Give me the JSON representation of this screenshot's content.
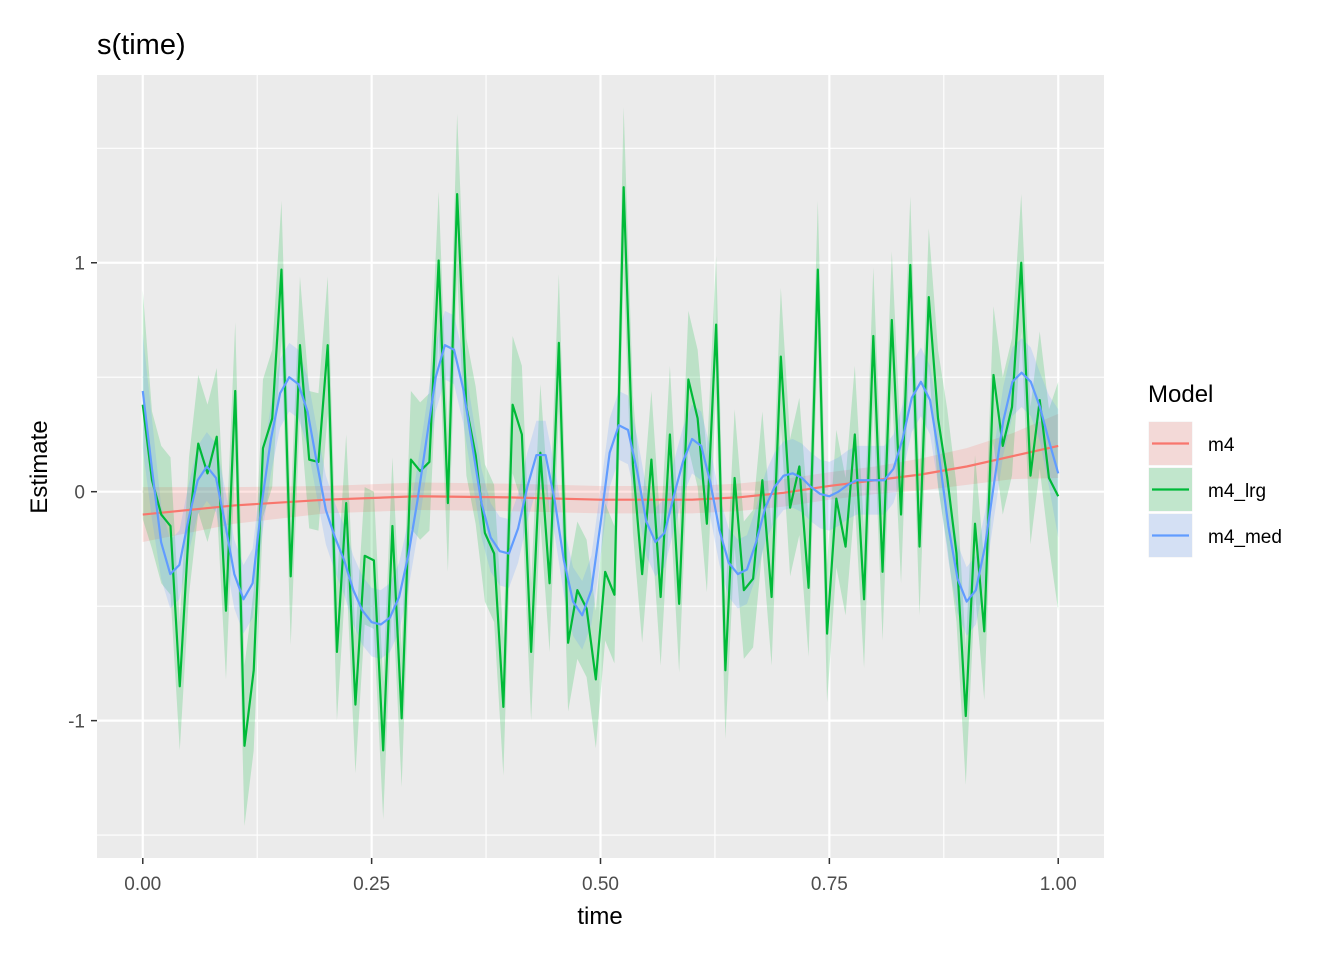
{
  "chart_data": {
    "type": "line",
    "title": "s(time)",
    "xlabel": "time",
    "ylabel": "Estimate",
    "xlim": [
      -0.05,
      1.05
    ],
    "ylim": [
      -1.6,
      1.82
    ],
    "x_ticks": [
      0.0,
      0.25,
      0.5,
      0.75,
      1.0
    ],
    "x_tick_labels": [
      "0.00",
      "0.25",
      "0.50",
      "0.75",
      "1.00"
    ],
    "y_ticks": [
      -1,
      0,
      1
    ],
    "y_tick_labels": [
      "-1",
      "0",
      "1"
    ],
    "grid": true,
    "legend_position": "right",
    "legend": {
      "title": "Model"
    },
    "series": [
      {
        "name": "m4",
        "color": "#F8766D",
        "fill": "#F8766D",
        "points": [
          [
            0.0,
            -0.1,
            0.12
          ],
          [
            0.1,
            -0.06,
            0.08
          ],
          [
            0.2,
            -0.035,
            0.06
          ],
          [
            0.3,
            -0.02,
            0.06
          ],
          [
            0.4,
            -0.025,
            0.06
          ],
          [
            0.5,
            -0.035,
            0.06
          ],
          [
            0.6,
            -0.035,
            0.06
          ],
          [
            0.65,
            -0.025,
            0.06
          ],
          [
            0.7,
            -0.005,
            0.06
          ],
          [
            0.75,
            0.025,
            0.06
          ],
          [
            0.8,
            0.05,
            0.06
          ],
          [
            0.85,
            0.075,
            0.07
          ],
          [
            0.9,
            0.11,
            0.08
          ],
          [
            0.95,
            0.155,
            0.1
          ],
          [
            1.0,
            0.2,
            0.14
          ]
        ]
      },
      {
        "name": "m4_lrg",
        "color": "#00BA38",
        "fill": "#00BA38",
        "points": [
          [
            0.0,
            0.38,
            0.5
          ],
          [
            0.0101,
            0.05,
            0.3
          ],
          [
            0.0202,
            -0.1,
            0.3
          ],
          [
            0.0303,
            -0.15,
            0.3
          ],
          [
            0.0404,
            -0.85,
            0.28
          ],
          [
            0.0505,
            -0.15,
            0.3
          ],
          [
            0.0606,
            0.21,
            0.3
          ],
          [
            0.0707,
            0.08,
            0.3
          ],
          [
            0.0808,
            0.24,
            0.3
          ],
          [
            0.0909,
            -0.52,
            0.3
          ],
          [
            0.101,
            0.44,
            0.3
          ],
          [
            0.1111,
            -1.11,
            0.35
          ],
          [
            0.1212,
            -0.78,
            0.35
          ],
          [
            0.1313,
            0.19,
            0.3
          ],
          [
            0.1414,
            0.32,
            0.3
          ],
          [
            0.1515,
            0.97,
            0.3
          ],
          [
            0.1616,
            -0.37,
            0.3
          ],
          [
            0.1717,
            0.64,
            0.3
          ],
          [
            0.1818,
            0.14,
            0.3
          ],
          [
            0.1919,
            0.13,
            0.3
          ],
          [
            0.202,
            0.64,
            0.3
          ],
          [
            0.2121,
            -0.7,
            0.3
          ],
          [
            0.2222,
            -0.05,
            0.3
          ],
          [
            0.2323,
            -0.93,
            0.3
          ],
          [
            0.2424,
            -0.28,
            0.3
          ],
          [
            0.2525,
            -0.3,
            0.3
          ],
          [
            0.2626,
            -1.13,
            0.3
          ],
          [
            0.2727,
            -0.15,
            0.3
          ],
          [
            0.2828,
            -0.99,
            0.3
          ],
          [
            0.2929,
            0.14,
            0.3
          ],
          [
            0.303,
            0.09,
            0.3
          ],
          [
            0.3131,
            0.13,
            0.3
          ],
          [
            0.3232,
            1.01,
            0.3
          ],
          [
            0.3333,
            -0.05,
            0.3
          ],
          [
            0.3434,
            1.3,
            0.35
          ],
          [
            0.3535,
            0.37,
            0.3
          ],
          [
            0.3636,
            0.16,
            0.3
          ],
          [
            0.3737,
            -0.18,
            0.3
          ],
          [
            0.3838,
            -0.27,
            0.3
          ],
          [
            0.3939,
            -0.94,
            0.3
          ],
          [
            0.404,
            0.38,
            0.3
          ],
          [
            0.4141,
            0.25,
            0.3
          ],
          [
            0.4242,
            -0.7,
            0.3
          ],
          [
            0.4343,
            0.17,
            0.3
          ],
          [
            0.4444,
            -0.4,
            0.3
          ],
          [
            0.4545,
            0.65,
            0.3
          ],
          [
            0.4646,
            -0.66,
            0.3
          ],
          [
            0.4747,
            -0.43,
            0.3
          ],
          [
            0.4848,
            -0.51,
            0.3
          ],
          [
            0.4949,
            -0.82,
            0.3
          ],
          [
            0.5051,
            -0.35,
            0.3
          ],
          [
            0.5152,
            -0.45,
            0.3
          ],
          [
            0.5253,
            1.33,
            0.35
          ],
          [
            0.5354,
            0.12,
            0.3
          ],
          [
            0.5455,
            -0.36,
            0.3
          ],
          [
            0.5556,
            0.14,
            0.3
          ],
          [
            0.5657,
            -0.46,
            0.3
          ],
          [
            0.5758,
            0.25,
            0.3
          ],
          [
            0.5859,
            -0.49,
            0.3
          ],
          [
            0.596,
            0.49,
            0.3
          ],
          [
            0.6061,
            0.32,
            0.3
          ],
          [
            0.6162,
            -0.14,
            0.3
          ],
          [
            0.6263,
            0.73,
            0.3
          ],
          [
            0.6364,
            -0.78,
            0.3
          ],
          [
            0.6465,
            0.06,
            0.3
          ],
          [
            0.6566,
            -0.43,
            0.3
          ],
          [
            0.6667,
            -0.38,
            0.3
          ],
          [
            0.6768,
            0.05,
            0.3
          ],
          [
            0.6869,
            -0.46,
            0.3
          ],
          [
            0.697,
            0.59,
            0.3
          ],
          [
            0.7071,
            -0.07,
            0.3
          ],
          [
            0.7172,
            0.11,
            0.3
          ],
          [
            0.7273,
            -0.42,
            0.3
          ],
          [
            0.7374,
            0.97,
            0.3
          ],
          [
            0.7475,
            -0.62,
            0.3
          ],
          [
            0.7576,
            -0.03,
            0.3
          ],
          [
            0.7677,
            -0.24,
            0.3
          ],
          [
            0.7778,
            0.25,
            0.3
          ],
          [
            0.7879,
            -0.47,
            0.3
          ],
          [
            0.798,
            0.68,
            0.3
          ],
          [
            0.8081,
            -0.35,
            0.3
          ],
          [
            0.8182,
            0.75,
            0.3
          ],
          [
            0.8283,
            -0.1,
            0.3
          ],
          [
            0.8384,
            0.99,
            0.3
          ],
          [
            0.8485,
            -0.24,
            0.3
          ],
          [
            0.8586,
            0.85,
            0.3
          ],
          [
            0.8687,
            0.32,
            0.3
          ],
          [
            0.8788,
            0.06,
            0.3
          ],
          [
            0.8889,
            -0.27,
            0.3
          ],
          [
            0.899,
            -0.98,
            0.3
          ],
          [
            0.9091,
            -0.14,
            0.3
          ],
          [
            0.9192,
            -0.61,
            0.3
          ],
          [
            0.9293,
            0.51,
            0.3
          ],
          [
            0.9394,
            0.2,
            0.3
          ],
          [
            0.9495,
            0.37,
            0.3
          ],
          [
            0.9596,
            1.0,
            0.3
          ],
          [
            0.9697,
            0.07,
            0.3
          ],
          [
            0.9798,
            0.4,
            0.3
          ],
          [
            0.9899,
            0.06,
            0.3
          ],
          [
            1.0,
            -0.02,
            0.5
          ]
        ]
      },
      {
        "name": "m4_med",
        "color": "#619CFF",
        "fill": "#619CFF",
        "points": [
          [
            0.0,
            0.44,
            0.25
          ],
          [
            0.01,
            0.1,
            0.22
          ],
          [
            0.02,
            -0.22,
            0.16
          ],
          [
            0.03,
            -0.36,
            0.15
          ],
          [
            0.04,
            -0.32,
            0.15
          ],
          [
            0.05,
            -0.12,
            0.15
          ],
          [
            0.06,
            0.05,
            0.15
          ],
          [
            0.07,
            0.11,
            0.15
          ],
          [
            0.08,
            0.06,
            0.15
          ],
          [
            0.09,
            -0.14,
            0.15
          ],
          [
            0.1,
            -0.36,
            0.15
          ],
          [
            0.11,
            -0.47,
            0.15
          ],
          [
            0.12,
            -0.4,
            0.15
          ],
          [
            0.13,
            -0.05,
            0.15
          ],
          [
            0.14,
            0.23,
            0.15
          ],
          [
            0.15,
            0.43,
            0.15
          ],
          [
            0.16,
            0.5,
            0.15
          ],
          [
            0.17,
            0.47,
            0.15
          ],
          [
            0.18,
            0.35,
            0.15
          ],
          [
            0.19,
            0.13,
            0.15
          ],
          [
            0.2,
            -0.08,
            0.15
          ],
          [
            0.21,
            -0.2,
            0.15
          ],
          [
            0.22,
            -0.3,
            0.15
          ],
          [
            0.23,
            -0.43,
            0.15
          ],
          [
            0.24,
            -0.52,
            0.15
          ],
          [
            0.25,
            -0.57,
            0.15
          ],
          [
            0.26,
            -0.58,
            0.15
          ],
          [
            0.27,
            -0.55,
            0.15
          ],
          [
            0.28,
            -0.46,
            0.15
          ],
          [
            0.29,
            -0.28,
            0.15
          ],
          [
            0.3,
            -0.04,
            0.15
          ],
          [
            0.31,
            0.23,
            0.15
          ],
          [
            0.32,
            0.5,
            0.15
          ],
          [
            0.33,
            0.64,
            0.15
          ],
          [
            0.34,
            0.62,
            0.15
          ],
          [
            0.35,
            0.45,
            0.15
          ],
          [
            0.36,
            0.2,
            0.15
          ],
          [
            0.37,
            -0.05,
            0.15
          ],
          [
            0.38,
            -0.2,
            0.15
          ],
          [
            0.39,
            -0.26,
            0.15
          ],
          [
            0.4,
            -0.27,
            0.15
          ],
          [
            0.41,
            -0.16,
            0.15
          ],
          [
            0.42,
            0.02,
            0.15
          ],
          [
            0.43,
            0.16,
            0.15
          ],
          [
            0.44,
            0.16,
            0.15
          ],
          [
            0.45,
            -0.04,
            0.15
          ],
          [
            0.46,
            -0.3,
            0.15
          ],
          [
            0.47,
            -0.48,
            0.15
          ],
          [
            0.48,
            -0.54,
            0.15
          ],
          [
            0.49,
            -0.43,
            0.15
          ],
          [
            0.5,
            -0.14,
            0.15
          ],
          [
            0.51,
            0.17,
            0.15
          ],
          [
            0.52,
            0.29,
            0.15
          ],
          [
            0.53,
            0.27,
            0.15
          ],
          [
            0.54,
            0.09,
            0.15
          ],
          [
            0.55,
            -0.13,
            0.15
          ],
          [
            0.56,
            -0.22,
            0.15
          ],
          [
            0.57,
            -0.18,
            0.15
          ],
          [
            0.58,
            -0.02,
            0.15
          ],
          [
            0.59,
            0.13,
            0.15
          ],
          [
            0.6,
            0.23,
            0.15
          ],
          [
            0.61,
            0.2,
            0.15
          ],
          [
            0.62,
            0.04,
            0.15
          ],
          [
            0.63,
            -0.17,
            0.15
          ],
          [
            0.64,
            -0.31,
            0.15
          ],
          [
            0.65,
            -0.36,
            0.15
          ],
          [
            0.66,
            -0.34,
            0.15
          ],
          [
            0.67,
            -0.22,
            0.15
          ],
          [
            0.68,
            -0.07,
            0.15
          ],
          [
            0.69,
            0.02,
            0.15
          ],
          [
            0.7,
            0.07,
            0.15
          ],
          [
            0.71,
            0.08,
            0.15
          ],
          [
            0.72,
            0.06,
            0.15
          ],
          [
            0.73,
            0.02,
            0.15
          ],
          [
            0.74,
            -0.01,
            0.15
          ],
          [
            0.75,
            -0.02,
            0.15
          ],
          [
            0.76,
            0.0,
            0.15
          ],
          [
            0.77,
            0.03,
            0.15
          ],
          [
            0.78,
            0.05,
            0.15
          ],
          [
            0.79,
            0.05,
            0.15
          ],
          [
            0.8,
            0.05,
            0.15
          ],
          [
            0.81,
            0.05,
            0.15
          ],
          [
            0.82,
            0.1,
            0.15
          ],
          [
            0.83,
            0.23,
            0.15
          ],
          [
            0.84,
            0.41,
            0.15
          ],
          [
            0.85,
            0.48,
            0.15
          ],
          [
            0.86,
            0.4,
            0.15
          ],
          [
            0.87,
            0.15,
            0.15
          ],
          [
            0.88,
            -0.15,
            0.15
          ],
          [
            0.89,
            -0.38,
            0.15
          ],
          [
            0.9,
            -0.48,
            0.15
          ],
          [
            0.91,
            -0.43,
            0.15
          ],
          [
            0.92,
            -0.24,
            0.15
          ],
          [
            0.93,
            0.04,
            0.15
          ],
          [
            0.94,
            0.31,
            0.15
          ],
          [
            0.95,
            0.48,
            0.15
          ],
          [
            0.96,
            0.52,
            0.15
          ],
          [
            0.97,
            0.48,
            0.15
          ],
          [
            0.98,
            0.37,
            0.15
          ],
          [
            0.99,
            0.22,
            0.2
          ],
          [
            1.0,
            0.08,
            0.28
          ]
        ]
      }
    ]
  }
}
